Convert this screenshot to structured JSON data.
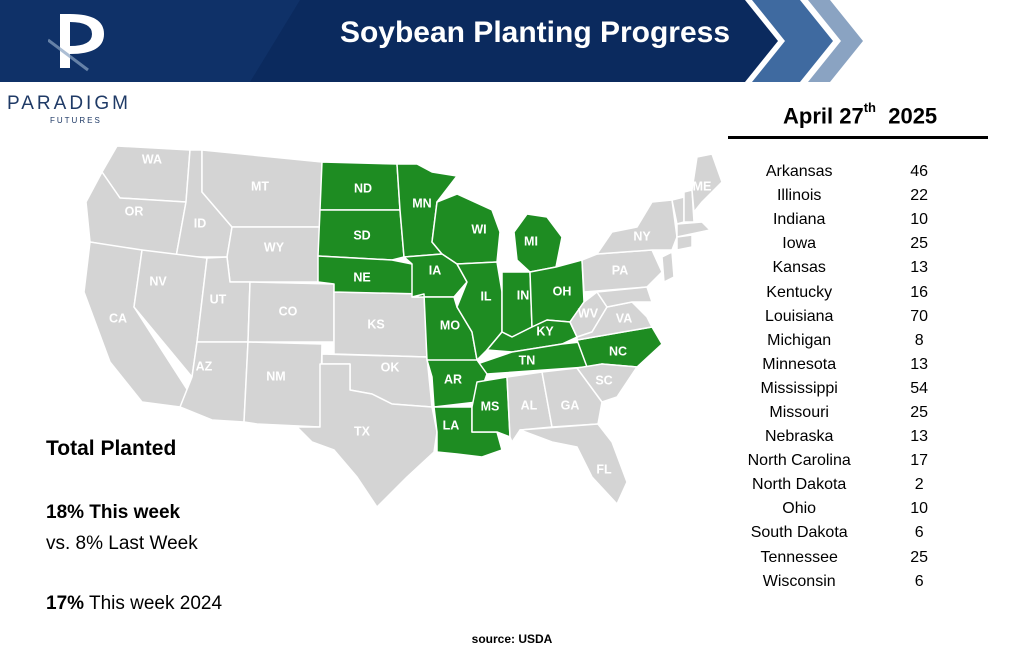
{
  "header": {
    "title": "Soybean Planting Progress",
    "logo_letter": "P",
    "brand_name": "PARADIGM",
    "brand_sub": "FUTURES",
    "colors": {
      "banner_dark": "#0b2a5e",
      "banner_mid": "#3f6aa0",
      "banner_light": "#8aa3c2"
    }
  },
  "map": {
    "planted_color": "#1e8c22",
    "other_color": "#d4d4d4",
    "planted_states": [
      "ND",
      "SD",
      "NE",
      "MN",
      "IA",
      "MO",
      "AR",
      "LA",
      "MS",
      "TN",
      "KY",
      "IL",
      "IN",
      "OH",
      "MI",
      "WI",
      "NC"
    ],
    "other_states": [
      "WA",
      "OR",
      "CA",
      "ID",
      "NV",
      "MT",
      "WY",
      "UT",
      "AZ",
      "CO",
      "NM",
      "KS",
      "OK",
      "TX",
      "AL",
      "GA",
      "FL",
      "SC",
      "VA",
      "WV",
      "PA",
      "NY",
      "ME"
    ]
  },
  "table": {
    "date_month": "April 27",
    "date_suffix": "th",
    "year": "2025",
    "rows": [
      {
        "state": "Arkansas",
        "value": "46"
      },
      {
        "state": "Illinois",
        "value": "22"
      },
      {
        "state": "Indiana",
        "value": "10"
      },
      {
        "state": "Iowa",
        "value": "25"
      },
      {
        "state": "Kansas",
        "value": "13"
      },
      {
        "state": "Kentucky",
        "value": "16"
      },
      {
        "state": "Louisiana",
        "value": "70"
      },
      {
        "state": "Michigan",
        "value": "8"
      },
      {
        "state": "Minnesota",
        "value": "13"
      },
      {
        "state": "Mississippi",
        "value": "54"
      },
      {
        "state": "Missouri",
        "value": "25"
      },
      {
        "state": "Nebraska",
        "value": "13"
      },
      {
        "state": "North Carolina",
        "value": "17"
      },
      {
        "state": "North Dakota",
        "value": "2"
      },
      {
        "state": "Ohio",
        "value": "10"
      },
      {
        "state": "South Dakota",
        "value": "6"
      },
      {
        "state": "Tennessee",
        "value": "25"
      },
      {
        "state": "Wisconsin",
        "value": "6"
      }
    ]
  },
  "summary": {
    "heading": "Total Planted",
    "this_week_pct": "18%",
    "this_week_label": " This week",
    "last_week": "vs. 8% Last Week",
    "prior_year_pct": "17%",
    "prior_year_label": " This week 2024"
  },
  "footer": {
    "source": "source: USDA"
  }
}
